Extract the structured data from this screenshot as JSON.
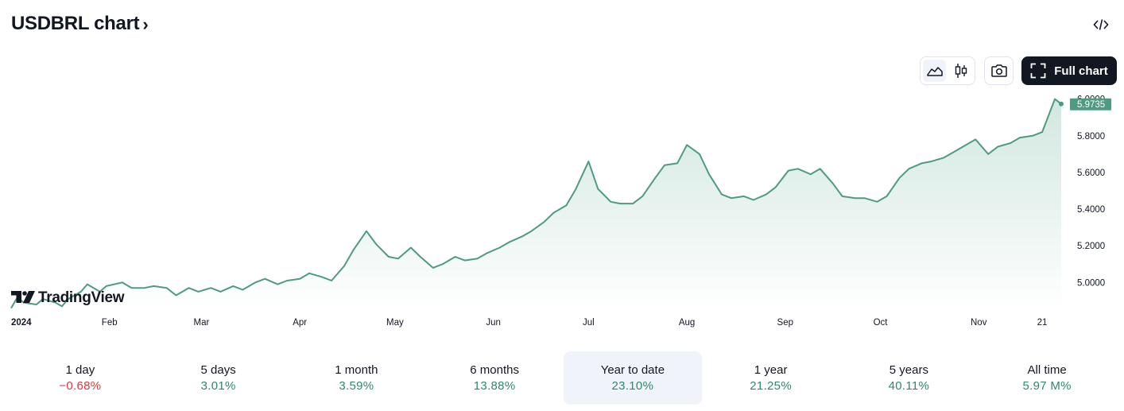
{
  "header": {
    "title": "USDBRL chart",
    "chevron": "›"
  },
  "toolbar": {
    "embed_icon": "code-icon",
    "area_icon": "area-chart-icon",
    "candle_icon": "candlestick-icon",
    "snapshot_icon": "camera-icon",
    "full_chart_label": "Full chart"
  },
  "watermark": {
    "text": "TradingView"
  },
  "colors": {
    "line": "#4e9b80",
    "fill_top": "#cfe6dd",
    "fill_bottom": "#ffffff",
    "price_label_bg": "#4e9b80",
    "up": "#2b8a6e",
    "down": "#e0383e",
    "dark": "#131722"
  },
  "chart_data": {
    "type": "area",
    "symbol": "USDBRL",
    "current_value": "5.9735",
    "y_ticks": [
      "5.0000",
      "5.2000",
      "5.4000",
      "5.6000",
      "5.8000",
      "6.0000"
    ],
    "ylim": [
      4.88,
      6.02
    ],
    "x_ticks": [
      {
        "label": "2024",
        "date": "2024-01-01",
        "bold": true
      },
      {
        "label": "Feb",
        "date": "2024-02-01"
      },
      {
        "label": "Mar",
        "date": "2024-03-01"
      },
      {
        "label": "Apr",
        "date": "2024-04-01"
      },
      {
        "label": "May",
        "date": "2024-05-01"
      },
      {
        "label": "Jun",
        "date": "2024-06-01"
      },
      {
        "label": "Jul",
        "date": "2024-07-01"
      },
      {
        "label": "Aug",
        "date": "2024-08-01"
      },
      {
        "label": "Sep",
        "date": "2024-09-01"
      },
      {
        "label": "Oct",
        "date": "2024-10-01"
      },
      {
        "label": "Nov",
        "date": "2024-11-01"
      },
      {
        "label": "21",
        "date": "2024-11-21"
      }
    ],
    "x_range": [
      "2024-01-01",
      "2024-11-27"
    ],
    "series": [
      {
        "points": [
          [
            "2024-01-01",
            4.86
          ],
          [
            "2024-01-03",
            4.92
          ],
          [
            "2024-01-05",
            4.89
          ],
          [
            "2024-01-09",
            4.88
          ],
          [
            "2024-01-11",
            4.91
          ],
          [
            "2024-01-15",
            4.89
          ],
          [
            "2024-01-17",
            4.87
          ],
          [
            "2024-01-19",
            4.91
          ],
          [
            "2024-01-23",
            4.95
          ],
          [
            "2024-01-25",
            4.99
          ],
          [
            "2024-01-29",
            4.95
          ],
          [
            "2024-01-31",
            4.98
          ],
          [
            "2024-02-05",
            5.0
          ],
          [
            "2024-02-08",
            4.97
          ],
          [
            "2024-02-12",
            4.97
          ],
          [
            "2024-02-15",
            4.98
          ],
          [
            "2024-02-19",
            4.97
          ],
          [
            "2024-02-22",
            4.93
          ],
          [
            "2024-02-26",
            4.97
          ],
          [
            "2024-02-29",
            4.95
          ],
          [
            "2024-03-04",
            4.97
          ],
          [
            "2024-03-07",
            4.95
          ],
          [
            "2024-03-11",
            4.98
          ],
          [
            "2024-03-14",
            4.96
          ],
          [
            "2024-03-18",
            5.0
          ],
          [
            "2024-03-21",
            5.02
          ],
          [
            "2024-03-25",
            4.99
          ],
          [
            "2024-03-28",
            5.01
          ],
          [
            "2024-04-01",
            5.02
          ],
          [
            "2024-04-04",
            5.05
          ],
          [
            "2024-04-08",
            5.03
          ],
          [
            "2024-04-11",
            5.01
          ],
          [
            "2024-04-15",
            5.09
          ],
          [
            "2024-04-18",
            5.18
          ],
          [
            "2024-04-22",
            5.28
          ],
          [
            "2024-04-25",
            5.21
          ],
          [
            "2024-04-29",
            5.14
          ],
          [
            "2024-05-02",
            5.13
          ],
          [
            "2024-05-06",
            5.19
          ],
          [
            "2024-05-09",
            5.14
          ],
          [
            "2024-05-13",
            5.08
          ],
          [
            "2024-05-16",
            5.1
          ],
          [
            "2024-05-20",
            5.14
          ],
          [
            "2024-05-23",
            5.12
          ],
          [
            "2024-05-27",
            5.13
          ],
          [
            "2024-05-30",
            5.16
          ],
          [
            "2024-06-03",
            5.19
          ],
          [
            "2024-06-06",
            5.22
          ],
          [
            "2024-06-10",
            5.25
          ],
          [
            "2024-06-13",
            5.28
          ],
          [
            "2024-06-17",
            5.33
          ],
          [
            "2024-06-20",
            5.38
          ],
          [
            "2024-06-24",
            5.42
          ],
          [
            "2024-06-27",
            5.51
          ],
          [
            "2024-07-01",
            5.66
          ],
          [
            "2024-07-04",
            5.51
          ],
          [
            "2024-07-08",
            5.44
          ],
          [
            "2024-07-11",
            5.43
          ],
          [
            "2024-07-15",
            5.43
          ],
          [
            "2024-07-18",
            5.47
          ],
          [
            "2024-07-22",
            5.57
          ],
          [
            "2024-07-25",
            5.64
          ],
          [
            "2024-07-29",
            5.65
          ],
          [
            "2024-08-01",
            5.75
          ],
          [
            "2024-08-05",
            5.7
          ],
          [
            "2024-08-08",
            5.59
          ],
          [
            "2024-08-12",
            5.48
          ],
          [
            "2024-08-15",
            5.46
          ],
          [
            "2024-08-19",
            5.47
          ],
          [
            "2024-08-22",
            5.45
          ],
          [
            "2024-08-26",
            5.48
          ],
          [
            "2024-08-29",
            5.52
          ],
          [
            "2024-09-02",
            5.61
          ],
          [
            "2024-09-05",
            5.62
          ],
          [
            "2024-09-09",
            5.59
          ],
          [
            "2024-09-12",
            5.62
          ],
          [
            "2024-09-16",
            5.54
          ],
          [
            "2024-09-19",
            5.47
          ],
          [
            "2024-09-23",
            5.46
          ],
          [
            "2024-09-26",
            5.46
          ],
          [
            "2024-09-30",
            5.44
          ],
          [
            "2024-10-03",
            5.47
          ],
          [
            "2024-10-07",
            5.57
          ],
          [
            "2024-10-10",
            5.62
          ],
          [
            "2024-10-14",
            5.65
          ],
          [
            "2024-10-17",
            5.66
          ],
          [
            "2024-10-21",
            5.68
          ],
          [
            "2024-10-24",
            5.71
          ],
          [
            "2024-10-28",
            5.75
          ],
          [
            "2024-10-31",
            5.78
          ],
          [
            "2024-11-04",
            5.7
          ],
          [
            "2024-11-07",
            5.74
          ],
          [
            "2024-11-11",
            5.76
          ],
          [
            "2024-11-14",
            5.79
          ],
          [
            "2024-11-18",
            5.8
          ],
          [
            "2024-11-21",
            5.82
          ],
          [
            "2024-11-25",
            6.0
          ],
          [
            "2024-11-27",
            5.9735
          ]
        ]
      }
    ]
  },
  "periods": [
    {
      "label": "1 day",
      "value": "−0.68%",
      "dir": "down"
    },
    {
      "label": "5 days",
      "value": "3.01%",
      "dir": "up"
    },
    {
      "label": "1 month",
      "value": "3.59%",
      "dir": "up"
    },
    {
      "label": "6 months",
      "value": "13.88%",
      "dir": "up"
    },
    {
      "label": "Year to date",
      "value": "23.10%",
      "dir": "up",
      "active": true
    },
    {
      "label": "1 year",
      "value": "21.25%",
      "dir": "up"
    },
    {
      "label": "5 years",
      "value": "40.11%",
      "dir": "up"
    },
    {
      "label": "All time",
      "value": "5.97 M%",
      "dir": "up"
    }
  ]
}
